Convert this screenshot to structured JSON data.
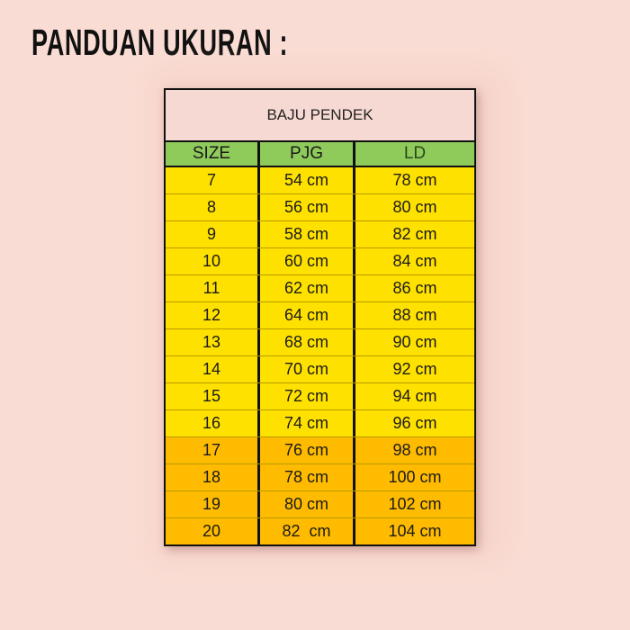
{
  "title": "PANDUAN UKURAN :",
  "table": {
    "caption": "BAJU PENDEK",
    "columns": [
      "SIZE",
      "PJG",
      "LD"
    ],
    "rows": [
      [
        "7",
        "54 cm",
        "78 cm"
      ],
      [
        "8",
        "56 cm",
        "80 cm"
      ],
      [
        "9",
        "58 cm",
        "82 cm"
      ],
      [
        "10",
        "60 cm",
        "84 cm"
      ],
      [
        "11",
        "62 cm",
        "86 cm"
      ],
      [
        "12",
        "64 cm",
        "88 cm"
      ],
      [
        "13",
        "68 cm",
        "90 cm"
      ],
      [
        "14",
        "70 cm",
        "92 cm"
      ],
      [
        "15",
        "72 cm",
        "94 cm"
      ],
      [
        "16",
        "74 cm",
        "96 cm"
      ],
      [
        "17",
        "76 cm",
        "98 cm"
      ],
      [
        "18",
        "78 cm",
        "100 cm"
      ],
      [
        "19",
        "80 cm",
        "102 cm"
      ],
      [
        "20",
        "82  cm",
        "104 cm"
      ]
    ],
    "highlight_from_size": 17
  },
  "colors": {
    "background": "#f9dcd3",
    "header_green": "#8fcb5b",
    "row_yellow": "#ffe100",
    "row_orange": "#ffbb00"
  }
}
